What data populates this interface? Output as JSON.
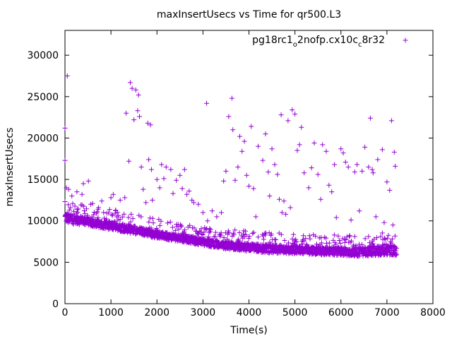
{
  "chart_data": {
    "type": "scatter",
    "title": "maxInsertUsecs vs Time for qr500.L3",
    "xlabel": "Time(s)",
    "ylabel": "maxInsertUsecs",
    "xlim": [
      0,
      8000
    ],
    "ylim": [
      0,
      33000
    ],
    "xticks": [
      0,
      1000,
      2000,
      3000,
      4000,
      5000,
      6000,
      7000,
      8000
    ],
    "yticks": [
      0,
      5000,
      10000,
      15000,
      20000,
      25000,
      30000
    ],
    "grid": false,
    "legend_position": "top-right",
    "marker": "+",
    "series": [
      {
        "name_parts": [
          "pg18rc1",
          "o",
          "2nofp.cx10c",
          "c",
          "8r32"
        ],
        "color": "#9400d3",
        "points": [
          [
            0,
            21200
          ],
          [
            0,
            17300
          ],
          [
            50,
            27500
          ],
          [
            30,
            14000
          ],
          [
            80,
            13800
          ],
          [
            150,
            13000
          ],
          [
            260,
            13500
          ],
          [
            370,
            13200
          ],
          [
            400,
            14500
          ],
          [
            510,
            14800
          ],
          [
            560,
            12000
          ],
          [
            600,
            12100
          ],
          [
            720,
            11400
          ],
          [
            800,
            12400
          ],
          [
            1000,
            12800
          ],
          [
            1050,
            13200
          ],
          [
            1100,
            11300
          ],
          [
            1200,
            12500
          ],
          [
            1300,
            12800
          ],
          [
            1330,
            23000
          ],
          [
            1390,
            17200
          ],
          [
            1420,
            26700
          ],
          [
            1460,
            26000
          ],
          [
            1500,
            22200
          ],
          [
            1540,
            25800
          ],
          [
            1580,
            23300
          ],
          [
            1600,
            25200
          ],
          [
            1620,
            22600
          ],
          [
            1660,
            16500
          ],
          [
            1700,
            13800
          ],
          [
            1760,
            12200
          ],
          [
            1800,
            21800
          ],
          [
            1820,
            17400
          ],
          [
            1860,
            21600
          ],
          [
            1880,
            16200
          ],
          [
            1900,
            12500
          ],
          [
            2000,
            15000
          ],
          [
            2060,
            14000
          ],
          [
            2100,
            16800
          ],
          [
            2150,
            15100
          ],
          [
            2200,
            16500
          ],
          [
            2300,
            16200
          ],
          [
            2350,
            13300
          ],
          [
            2420,
            14900
          ],
          [
            2500,
            15500
          ],
          [
            2550,
            13900
          ],
          [
            2600,
            16200
          ],
          [
            2650,
            13200
          ],
          [
            2700,
            13600
          ],
          [
            2760,
            12500
          ],
          [
            2800,
            12200
          ],
          [
            2900,
            12000
          ],
          [
            3000,
            11000
          ],
          [
            3100,
            10000
          ],
          [
            3080,
            24200
          ],
          [
            3200,
            11200
          ],
          [
            3300,
            10500
          ],
          [
            3400,
            11000
          ],
          [
            3450,
            14800
          ],
          [
            3500,
            16000
          ],
          [
            3560,
            22600
          ],
          [
            3630,
            24800
          ],
          [
            3650,
            21000
          ],
          [
            3700,
            14900
          ],
          [
            3760,
            16500
          ],
          [
            3800,
            20200
          ],
          [
            3850,
            18400
          ],
          [
            3900,
            19600
          ],
          [
            3950,
            15500
          ],
          [
            4000,
            14200
          ],
          [
            4050,
            21400
          ],
          [
            4100,
            13900
          ],
          [
            4150,
            10500
          ],
          [
            4200,
            19000
          ],
          [
            4300,
            17300
          ],
          [
            4360,
            20500
          ],
          [
            4420,
            15900
          ],
          [
            4450,
            13000
          ],
          [
            4500,
            18700
          ],
          [
            4560,
            16800
          ],
          [
            4620,
            15600
          ],
          [
            4660,
            12600
          ],
          [
            4700,
            22800
          ],
          [
            4720,
            11000
          ],
          [
            4760,
            12400
          ],
          [
            4800,
            10800
          ],
          [
            4850,
            22100
          ],
          [
            4900,
            11600
          ],
          [
            4940,
            23400
          ],
          [
            5000,
            22900
          ],
          [
            5050,
            18500
          ],
          [
            5100,
            19200
          ],
          [
            5140,
            21300
          ],
          [
            5200,
            15800
          ],
          [
            5300,
            14000
          ],
          [
            5360,
            16400
          ],
          [
            5420,
            19400
          ],
          [
            5500,
            15600
          ],
          [
            5560,
            12600
          ],
          [
            5600,
            19200
          ],
          [
            5680,
            18400
          ],
          [
            5740,
            14300
          ],
          [
            5800,
            13500
          ],
          [
            5860,
            16800
          ],
          [
            5900,
            10400
          ],
          [
            6000,
            18700
          ],
          [
            6050,
            18200
          ],
          [
            6100,
            17100
          ],
          [
            6160,
            16500
          ],
          [
            6220,
            10100
          ],
          [
            6300,
            15900
          ],
          [
            6350,
            16800
          ],
          [
            6400,
            11200
          ],
          [
            6460,
            16000
          ],
          [
            6520,
            18900
          ],
          [
            6600,
            16500
          ],
          [
            6640,
            22400
          ],
          [
            6680,
            16200
          ],
          [
            6700,
            15800
          ],
          [
            6760,
            10500
          ],
          [
            6800,
            17400
          ],
          [
            6900,
            18600
          ],
          [
            6940,
            9800
          ],
          [
            7000,
            14700
          ],
          [
            7060,
            13700
          ],
          [
            7100,
            22100
          ],
          [
            7130,
            9500
          ],
          [
            7160,
            18300
          ],
          [
            7180,
            16600
          ]
        ],
        "dense_band": {
          "x": [
            0,
            500,
            1000,
            1500,
            2000,
            2500,
            3000,
            3500,
            4000,
            4500,
            5000,
            5500,
            6000,
            6500,
            7000,
            7200
          ],
          "y_low": [
            9700,
            9400,
            8900,
            8400,
            7900,
            7500,
            7000,
            6600,
            6300,
            6100,
            6000,
            5900,
            5800,
            5700,
            5900,
            5800
          ],
          "y_high": [
            11000,
            10400,
            9900,
            9400,
            8800,
            8300,
            7900,
            7500,
            7300,
            7100,
            7000,
            6900,
            6800,
            6800,
            7200,
            7000
          ]
        }
      }
    ]
  }
}
